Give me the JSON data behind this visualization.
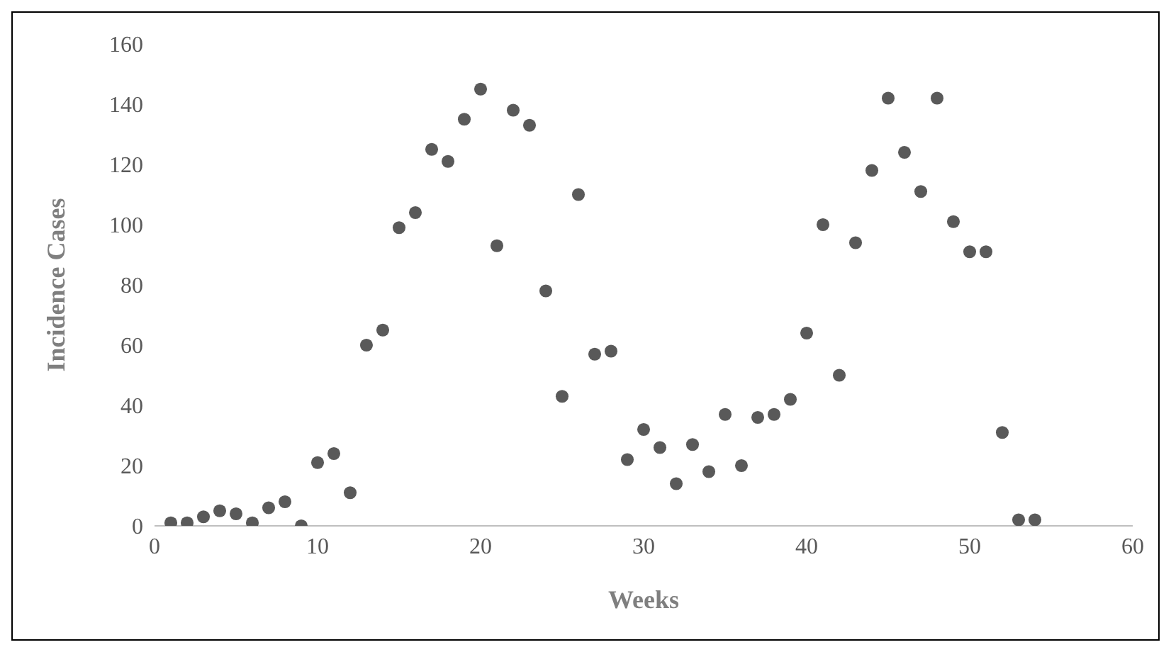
{
  "chart_data": {
    "type": "scatter",
    "xlabel": "Weeks",
    "ylabel": "Incidence Cases",
    "x": [
      1,
      2,
      3,
      4,
      5,
      6,
      7,
      8,
      9,
      10,
      11,
      12,
      13,
      14,
      15,
      16,
      17,
      18,
      19,
      20,
      21,
      22,
      23,
      24,
      25,
      26,
      27,
      28,
      29,
      30,
      31,
      32,
      33,
      34,
      35,
      36,
      37,
      38,
      39,
      40,
      41,
      42,
      43,
      44,
      45,
      46,
      47,
      48,
      49,
      50,
      51,
      52,
      53,
      54
    ],
    "values": [
      1,
      1,
      3,
      5,
      4,
      1,
      6,
      8,
      0,
      21,
      24,
      11,
      60,
      65,
      99,
      104,
      125,
      121,
      135,
      145,
      93,
      138,
      133,
      78,
      43,
      110,
      57,
      58,
      22,
      32,
      26,
      14,
      27,
      18,
      37,
      20,
      36,
      37,
      42,
      64,
      100,
      50,
      94,
      118,
      142,
      124,
      111,
      142,
      101,
      91,
      91,
      31,
      2,
      2
    ],
    "color": "#595959",
    "marker": "circle",
    "grid": false,
    "legend": false,
    "xlim": [
      0,
      60
    ],
    "xticks": [
      0,
      10,
      20,
      30,
      40,
      50,
      60
    ],
    "ylim": [
      0,
      160
    ],
    "yticks": [
      0,
      20,
      40,
      60,
      80,
      100,
      120,
      140,
      160
    ]
  }
}
